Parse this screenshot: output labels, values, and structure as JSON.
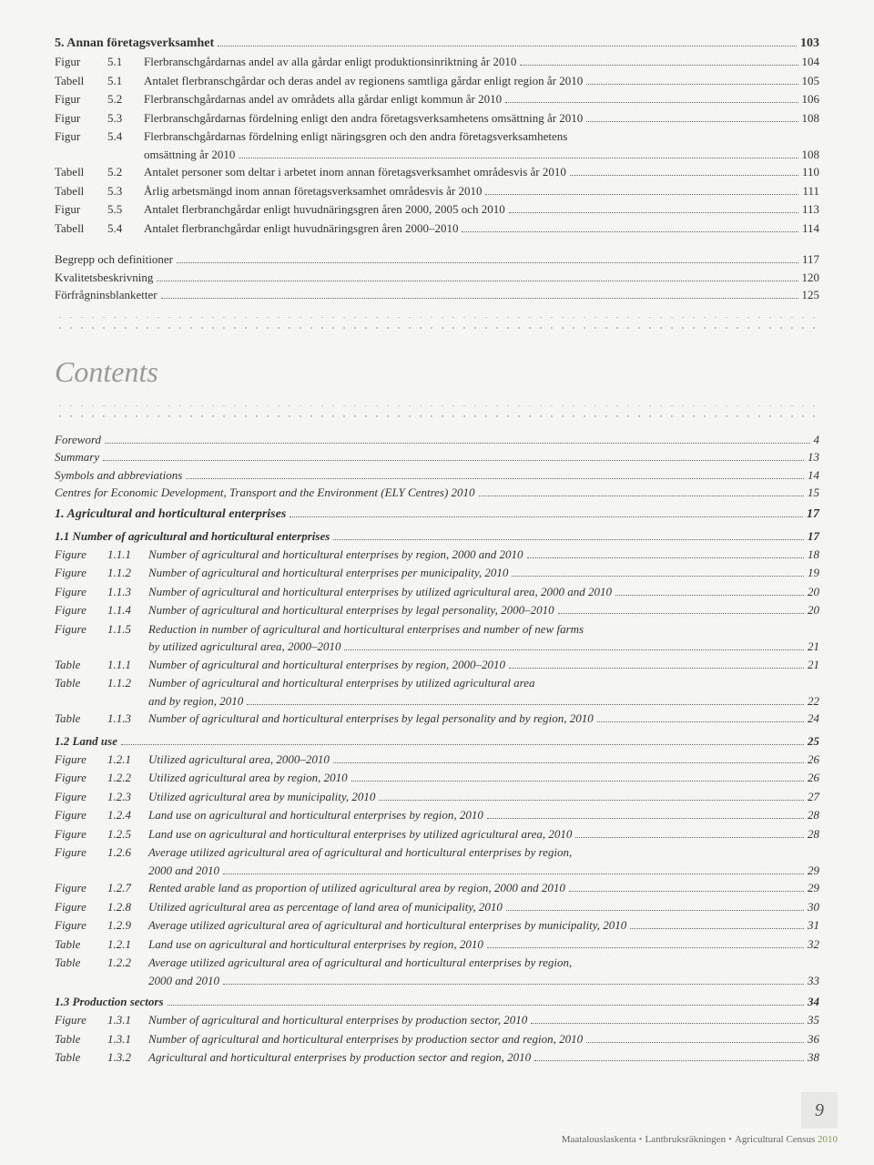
{
  "top": {
    "heading": {
      "text": "5. Annan företagsverksamhet",
      "page": "103"
    },
    "rows": [
      {
        "label": "Figur",
        "num": "5.1",
        "title": "Flerbranschgårdarnas andel av alla gårdar enligt produktionsinriktning år 2010",
        "page": "104"
      },
      {
        "label": "Tabell",
        "num": "5.1",
        "title": "Antalet flerbranschgårdar och deras andel av regionens samtliga gårdar enligt region år 2010",
        "page": "105"
      },
      {
        "label": "Figur",
        "num": "5.2",
        "title": "Flerbranschgårdarnas andel av områdets alla gårdar enligt kommun år 2010",
        "page": "106"
      },
      {
        "label": "Figur",
        "num": "5.3",
        "title": "Flerbranschgårdarnas fördelning enligt den andra företagsverksamhetens omsättning år 2010",
        "page": "108"
      }
    ],
    "multiline": {
      "label": "Figur",
      "num": "5.4",
      "line1": "Flerbranschgårdarnas fördelning enligt näringsgren och den andra företagsverksamhetens",
      "line2": "omsättning år 2010",
      "page": "108"
    },
    "rows2": [
      {
        "label": "Tabell",
        "num": "5.2",
        "title": "Antalet personer som deltar i arbetet inom annan företagsverksamhet områdesvis år 2010",
        "page": "110"
      },
      {
        "label": "Tabell",
        "num": "5.3",
        "title": "Årlig arbetsmängd inom annan företagsverksamhet områdesvis år 2010",
        "page": "111"
      },
      {
        "label": "Figur",
        "num": "5.5",
        "title": "Antalet flerbranchgårdar enligt huvudnäringsgren åren 2000, 2005 och 2010",
        "page": "113"
      },
      {
        "label": "Tabell",
        "num": "5.4",
        "title": "Antalet flerbranchgårdar enligt huvudnäringsgren åren 2000–2010",
        "page": "114"
      }
    ],
    "simple": [
      {
        "title": "Begrepp och definitioner",
        "page": "117"
      },
      {
        "title": "Kvalitetsbeskrivning",
        "page": "120"
      },
      {
        "title": "Förfrågninsblanketter",
        "page": "125"
      }
    ]
  },
  "contents_label": "Contents",
  "english": {
    "pre": [
      {
        "title": "Foreword",
        "page": "4"
      },
      {
        "title": "Summary",
        "page": "13"
      },
      {
        "title": "Symbols and abbreviations",
        "page": "14"
      },
      {
        "title": "Centres for Economic Development, Transport and the Environment (ELY Centres) 2010",
        "page": "15"
      }
    ],
    "h1": {
      "text": "1. Agricultural and horticultural enterprises",
      "page": "17"
    },
    "h11": {
      "text": "1.1 Number of agricultural and horticultural enterprises",
      "page": "17"
    },
    "s11": [
      {
        "label": "Figure",
        "num": "1.1.1",
        "title": "Number of agricultural and horticultural enterprises by region, 2000 and 2010",
        "page": "18"
      },
      {
        "label": "Figure",
        "num": "1.1.2",
        "title": "Number of agricultural and horticultural enterprises per municipality, 2010",
        "page": "19"
      },
      {
        "label": "Figure",
        "num": "1.1.3",
        "title": "Number of agricultural and horticultural enterprises by utilized agricultural area, 2000 and 2010",
        "page": "20"
      },
      {
        "label": "Figure",
        "num": "1.1.4",
        "title": "Number of agricultural and horticultural enterprises by legal personality, 2000–2010",
        "page": "20"
      }
    ],
    "s11_multi": {
      "label": "Figure",
      "num": "1.1.5",
      "line1": "Reduction in number of agricultural and horticultural enterprises and number of new farms",
      "line2": "by utilized agricultural area, 2000–2010",
      "page": "21"
    },
    "s11b": [
      {
        "label": "Table",
        "num": "1.1.1",
        "title": "Number of agricultural and horticultural enterprises by region, 2000–2010",
        "page": "21"
      }
    ],
    "s11_multi2": {
      "label": "Table",
      "num": "1.1.2",
      "line1": "Number of agricultural and horticultural enterprises by utilized agricultural area",
      "line2": "and by region, 2010",
      "page": "22"
    },
    "s11c": [
      {
        "label": "Table",
        "num": "1.1.3",
        "title": "Number of agricultural and horticultural enterprises by legal personality and by region, 2010",
        "page": "24"
      }
    ],
    "h12": {
      "text": "1.2 Land use",
      "page": "25"
    },
    "s12": [
      {
        "label": "Figure",
        "num": "1.2.1",
        "title": "Utilized agricultural area, 2000–2010",
        "page": "26"
      },
      {
        "label": "Figure",
        "num": "1.2.2",
        "title": "Utilized agricultural area by region, 2010",
        "page": "26"
      },
      {
        "label": "Figure",
        "num": "1.2.3",
        "title": "Utilized agricultural area by municipality, 2010",
        "page": "27"
      },
      {
        "label": "Figure",
        "num": "1.2.4",
        "title": "Land use on agricultural and horticultural enterprises by region, 2010",
        "page": "28"
      },
      {
        "label": "Figure",
        "num": "1.2.5",
        "title": "Land use on agricultural and horticultural enterprises by utilized agricultural area, 2010",
        "page": "28"
      }
    ],
    "s12_multi": {
      "label": "Figure",
      "num": "1.2.6",
      "line1": "Average utilized agricultural area of agricultural and horticultural enterprises by region,",
      "line2": "2000 and 2010",
      "page": "29"
    },
    "s12b": [
      {
        "label": "Figure",
        "num": "1.2.7",
        "title": "Rented arable land as proportion of utilized agricultural area by region, 2000 and 2010",
        "page": "29"
      },
      {
        "label": "Figure",
        "num": "1.2.8",
        "title": "Utilized agricultural area as percentage of land area of municipality, 2010",
        "page": "30"
      },
      {
        "label": "Figure",
        "num": "1.2.9",
        "title": "Average utilized agricultural area of agricultural and horticultural enterprises by municipality, 2010",
        "page": "31"
      },
      {
        "label": "Table",
        "num": "1.2.1",
        "title": "Land use on agricultural and horticultural enterprises by region, 2010",
        "page": "32"
      }
    ],
    "s12_multi2": {
      "label": "Table",
      "num": "1.2.2",
      "line1": "Average utilized agricultural area of agricultural and horticultural enterprises by region,",
      "line2": "2000 and 2010",
      "page": "33"
    },
    "h13": {
      "text": "1.3 Production sectors",
      "page": "34"
    },
    "s13": [
      {
        "label": "Figure",
        "num": "1.3.1",
        "title": "Number of agricultural and horticultural enterprises by production sector, 2010",
        "page": "35"
      },
      {
        "label": "Table",
        "num": "1.3.1",
        "title": "Number of agricultural and horticultural enterprises by production sector and region, 2010",
        "page": "36"
      },
      {
        "label": "Table",
        "num": "1.3.2",
        "title": "Agricultural and horticultural enterprises by production sector and region, 2010",
        "page": "38"
      }
    ]
  },
  "footer": {
    "page": "9",
    "text1": "Maatalouslaskenta",
    "text2": "Lantbruksräkningen",
    "text3": "Agricultural Census",
    "year": "2010"
  }
}
